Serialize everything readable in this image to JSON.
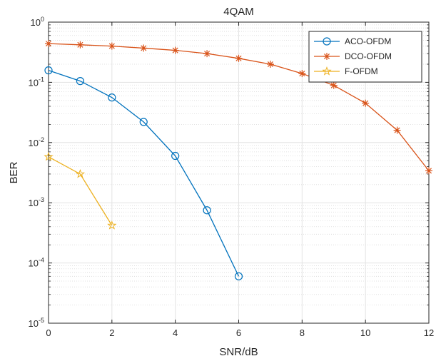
{
  "chart_data": {
    "type": "line",
    "title": "4QAM",
    "xlabel": "SNR/dB",
    "ylabel": "BER",
    "xlim": [
      0,
      12
    ],
    "ylim": [
      1e-05,
      1
    ],
    "yscale": "log",
    "grid": true,
    "minor_grid": true,
    "legend_position": "top-right",
    "x_ticks": [
      "0",
      "2",
      "4",
      "6",
      "8",
      "10",
      "12"
    ],
    "y_ticks": [
      {
        "base": "10",
        "exp": "0"
      },
      {
        "base": "10",
        "exp": "-1"
      },
      {
        "base": "10",
        "exp": "-2"
      },
      {
        "base": "10",
        "exp": "-3"
      },
      {
        "base": "10",
        "exp": "-4"
      },
      {
        "base": "10",
        "exp": "-5"
      }
    ],
    "series": [
      {
        "name": "ACO-OFDM",
        "color": "#0072BD",
        "marker": "circle",
        "x": [
          0,
          1,
          2,
          3,
          4,
          5,
          6
        ],
        "values": [
          0.158,
          0.105,
          0.056,
          0.022,
          0.006,
          0.00075,
          6e-05
        ]
      },
      {
        "name": "DCO-OFDM",
        "color": "#D95319",
        "marker": "asterisk",
        "x": [
          0,
          1,
          2,
          3,
          4,
          5,
          6,
          7,
          8,
          9,
          10,
          11,
          12
        ],
        "values": [
          0.44,
          0.42,
          0.4,
          0.37,
          0.34,
          0.3,
          0.25,
          0.2,
          0.14,
          0.089,
          0.045,
          0.016,
          0.0034
        ]
      },
      {
        "name": "F-OFDM",
        "color": "#EDB120",
        "marker": "star",
        "x": [
          0,
          1,
          2
        ],
        "values": [
          0.0058,
          0.003,
          0.00042
        ]
      }
    ]
  }
}
